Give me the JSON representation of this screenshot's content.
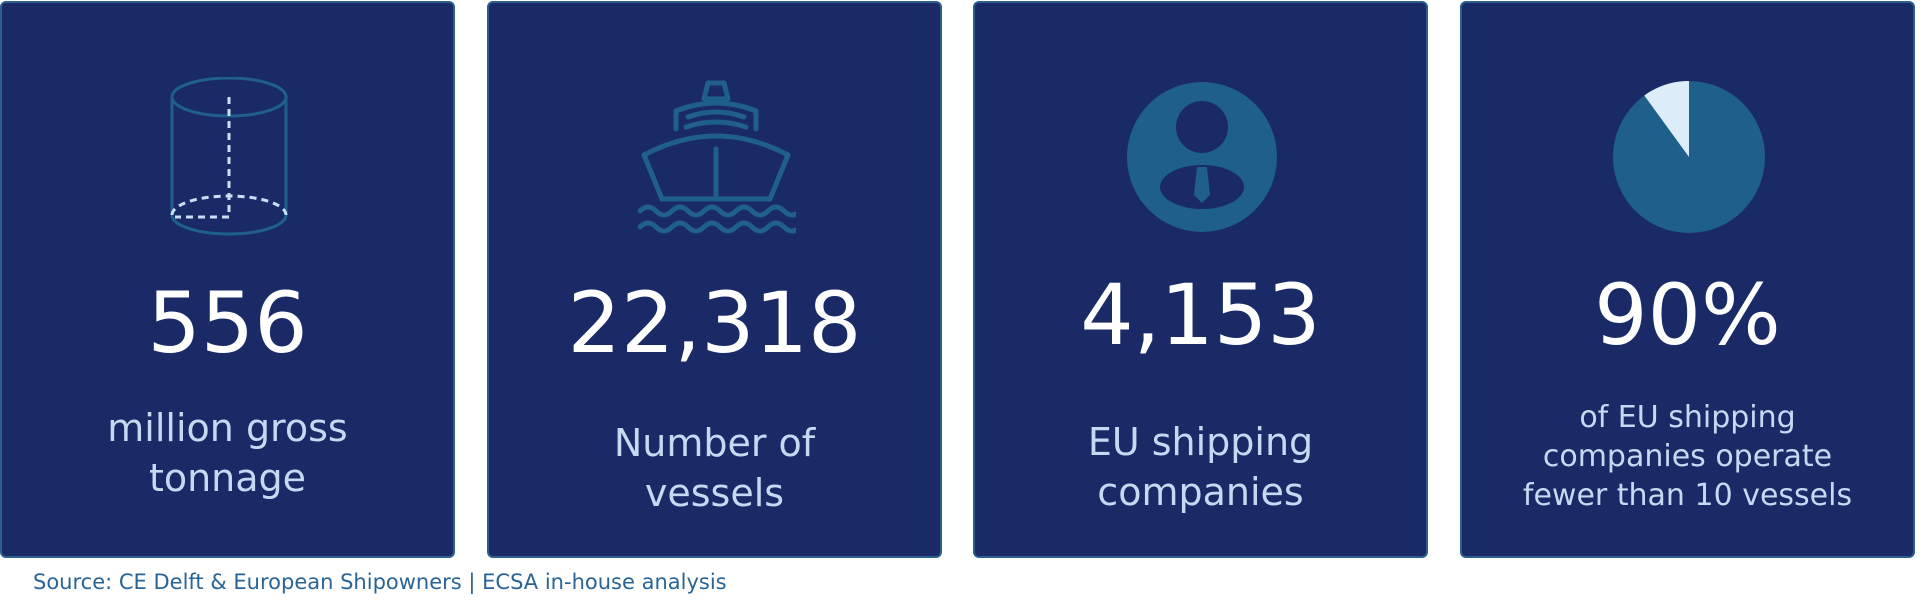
{
  "cards": [
    {
      "value": "556",
      "label": [
        "million gross",
        "tonnage"
      ]
    },
    {
      "value": "22,318",
      "label": [
        "Number of",
        "vessels"
      ]
    },
    {
      "value": "4,153",
      "label": [
        "EU shipping",
        "companies"
      ]
    },
    {
      "value": "90%",
      "label": [
        "of EU shipping",
        "companies operate",
        "fewer than 10 vessels"
      ]
    }
  ],
  "source": "Source: CE Delft & European Shipowners | ECSA in-house analysis"
}
